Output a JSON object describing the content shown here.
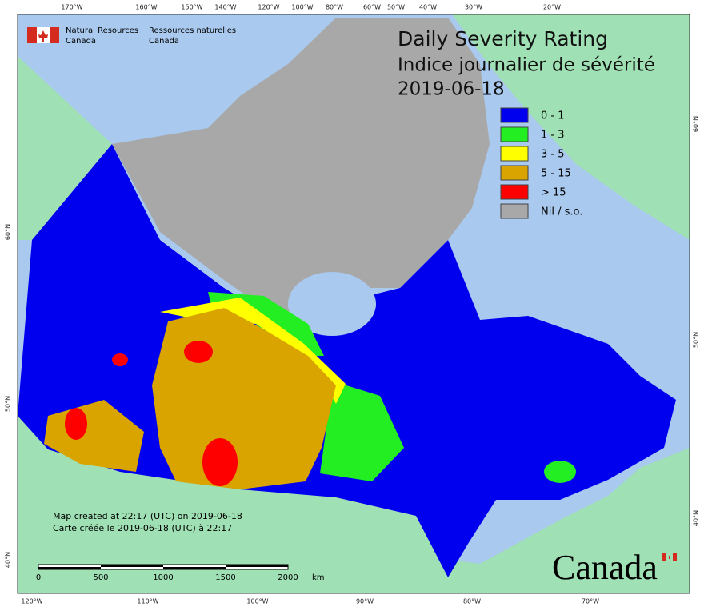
{
  "header": {
    "org_en_1": "Natural Resources",
    "org_en_2": "Canada",
    "org_fr_1": "Ressources naturelles",
    "org_fr_2": "Canada"
  },
  "title": {
    "line1": "Daily Severity Rating",
    "line2": "Indice journalier de sévérité",
    "date": "2019-06-18"
  },
  "legend": {
    "items": [
      {
        "label": "0 - 1",
        "color": "#0000ee"
      },
      {
        "label": "1 - 3",
        "color": "#22ee22"
      },
      {
        "label": "3 - 5",
        "color": "#ffff00"
      },
      {
        "label": "5 - 15",
        "color": "#d9a400"
      },
      {
        "label": "> 15",
        "color": "#ff0000"
      },
      {
        "label": "Nil / s.o.",
        "color": "#a8a8a8"
      }
    ]
  },
  "graticule": {
    "top": [
      "170°W",
      "160°W",
      "150°W",
      "140°W",
      "120°W",
      "100°W",
      "80°W",
      "60°W",
      "50°W",
      "40°W",
      "30°W",
      "20°W"
    ],
    "bottom": [
      "120°W",
      "110°W",
      "100°W",
      "90°W",
      "80°W",
      "70°W"
    ],
    "left": [
      "60°N",
      "50°N",
      "40°N"
    ],
    "right": [
      "60°N",
      "50°N",
      "40°N"
    ]
  },
  "notes": [
    "Map created at 22:17 (UTC) on 2019-06-18",
    "Carte créée le 2019-06-18 (UTC) à 22:17"
  ],
  "scale_bar": {
    "labels": [
      "0",
      "500",
      "1000",
      "1500",
      "2000"
    ],
    "unit": "km"
  },
  "wordmark": "Canada"
}
